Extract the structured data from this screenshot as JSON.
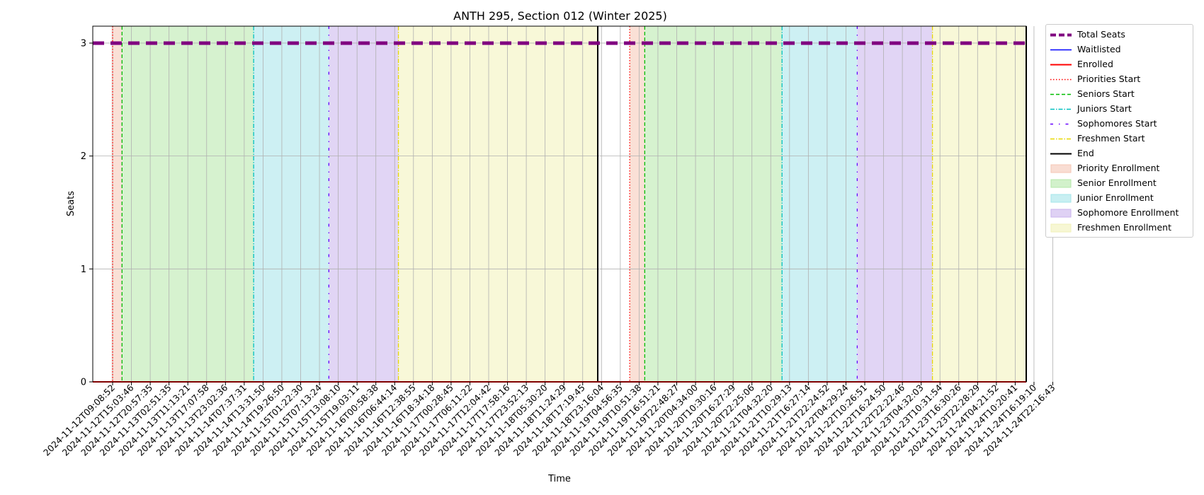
{
  "chart_data": {
    "type": "line",
    "title": "ANTH 295, Section 012 (Winter 2025)",
    "xlabel": "Time",
    "ylabel": "Seats",
    "ylim": [
      0,
      3.15
    ],
    "yticks": [
      0,
      1,
      2,
      3
    ],
    "grid": true,
    "legend_position": "outside-right",
    "x_tick_labels": [
      "2024-11-12T09:08:52",
      "2024-11-12T15:03:46",
      "2024-11-12T20:57:35",
      "2024-11-13T02:51:35",
      "2024-11-13T11:13:21",
      "2024-11-13T17:07:58",
      "2024-11-13T23:02:36",
      "2024-11-14T07:37:31",
      "2024-11-14T13:31:50",
      "2024-11-14T19:26:50",
      "2024-11-15T01:22:30",
      "2024-11-15T07:13:24",
      "2024-11-15T13:08:10",
      "2024-11-15T19:03:11",
      "2024-11-16T00:58:38",
      "2024-11-16T06:44:14",
      "2024-11-16T12:38:55",
      "2024-11-16T18:34:18",
      "2024-11-17T00:28:45",
      "2024-11-17T06:11:22",
      "2024-11-17T12:04:42",
      "2024-11-17T17:58:16",
      "2024-11-17T23:52:13",
      "2024-11-18T05:30:20",
      "2024-11-18T11:24:29",
      "2024-11-18T17:19:45",
      "2024-11-18T23:16:04",
      "2024-11-19T04:56:35",
      "2024-11-19T10:51:38",
      "2024-11-19T16:51:21",
      "2024-11-19T22:48:27",
      "2024-11-20T04:34:00",
      "2024-11-20T10:30:16",
      "2024-11-20T16:27:29",
      "2024-11-20T22:25:06",
      "2024-11-21T04:32:20",
      "2024-11-21T10:29:13",
      "2024-11-21T16:27:14",
      "2024-11-21T22:24:52",
      "2024-11-22T04:29:24",
      "2024-11-22T10:26:51",
      "2024-11-22T16:24:50",
      "2024-11-22T22:22:46",
      "2024-11-23T04:32:03",
      "2024-11-23T10:31:54",
      "2024-11-23T16:30:26",
      "2024-11-23T22:28:29",
      "2024-11-24T04:21:52",
      "2024-11-24T10:20:41",
      "2024-11-24T16:19:10",
      "2024-11-24T22:16:43"
    ],
    "series": [
      {
        "name": "Total Seats",
        "style": "dashed",
        "color": "#800080",
        "values_by_tick": "constant",
        "value": 3
      },
      {
        "name": "Waitlisted",
        "style": "solid",
        "color": "#0000ff",
        "value": 0
      },
      {
        "name": "Enrolled",
        "style": "solid",
        "color": "#ff0000",
        "value": 0
      }
    ],
    "event_lines": [
      {
        "name": "Priorities Start",
        "style": "dotted",
        "color": "#ff0000",
        "at_tick_index": [
          0,
          27.5
        ]
      },
      {
        "name": "Seniors Start",
        "style": "dashed",
        "color": "#00bb00",
        "at_tick_index": [
          0.5,
          28.3
        ]
      },
      {
        "name": "Juniors Start",
        "style": "dashdot",
        "color": "#00c0c0",
        "at_tick_index": [
          7.5,
          35.6
        ]
      },
      {
        "name": "Sophomores Start",
        "style": "loose-dashdot",
        "color": "#6600ff",
        "at_tick_index": [
          11.5,
          39.6
        ]
      },
      {
        "name": "Freshmen Start",
        "style": "dashdot",
        "color": "#e8d800",
        "at_tick_index": [
          15.2,
          43.6
        ]
      },
      {
        "name": "End",
        "style": "solid",
        "color": "#000000",
        "at_tick_index": [
          25.8,
          49.9
        ]
      }
    ],
    "enrollment_periods": [
      {
        "name": "Priority Enrollment",
        "color": "#f5c6b5",
        "ranges_tick_index": [
          [
            -0.05,
            0.5
          ],
          [
            27.5,
            28.3
          ]
        ]
      },
      {
        "name": "Senior Enrollment",
        "color": "#b4e8a8",
        "ranges_tick_index": [
          [
            0.5,
            7.5
          ],
          [
            28.3,
            35.6
          ]
        ]
      },
      {
        "name": "Junior Enrollment",
        "color": "#a4e4ea",
        "ranges_tick_index": [
          [
            7.5,
            11.5
          ],
          [
            35.6,
            39.6
          ]
        ]
      },
      {
        "name": "Sophomore Enrollment",
        "color": "#c9b2ec",
        "ranges_tick_index": [
          [
            11.5,
            15.2
          ],
          [
            39.6,
            43.6
          ]
        ]
      },
      {
        "name": "Freshmen Enrollment",
        "color": "#f2f2b8",
        "ranges_tick_index": [
          [
            15.2,
            25.8
          ],
          [
            43.6,
            49.9
          ]
        ]
      }
    ],
    "legend": [
      {
        "label": "Total Seats",
        "kind": "line",
        "color": "#800080",
        "dash": "8,4",
        "width": 4
      },
      {
        "label": "Waitlisted",
        "kind": "line",
        "color": "#0000ff",
        "dash": "",
        "width": 1.5
      },
      {
        "label": "Enrolled",
        "kind": "line",
        "color": "#ff0000",
        "dash": "",
        "width": 2
      },
      {
        "label": "Priorities Start",
        "kind": "line",
        "color": "#ff0000",
        "dash": "1.5,2.5",
        "width": 1.5
      },
      {
        "label": "Seniors Start",
        "kind": "line",
        "color": "#00bb00",
        "dash": "5,3",
        "width": 1.5
      },
      {
        "label": "Juniors Start",
        "kind": "line",
        "color": "#00c0c0",
        "dash": "6,2,1.5,2",
        "width": 1.5
      },
      {
        "label": "Sophomores Start",
        "kind": "line",
        "color": "#6600ff",
        "dash": "4,8,1.5,8",
        "width": 1.5
      },
      {
        "label": "Freshmen Start",
        "kind": "line",
        "color": "#e8d800",
        "dash": "6,2,1.5,2",
        "width": 1.5
      },
      {
        "label": "End",
        "kind": "line",
        "color": "#000000",
        "dash": "",
        "width": 2
      },
      {
        "label": "Priority Enrollment",
        "kind": "patch",
        "color": "#f5c6b5"
      },
      {
        "label": "Senior Enrollment",
        "kind": "patch",
        "color": "#b4e8a8"
      },
      {
        "label": "Junior Enrollment",
        "kind": "patch",
        "color": "#a4e4ea"
      },
      {
        "label": "Sophomore Enrollment",
        "kind": "patch",
        "color": "#c9b2ec"
      },
      {
        "label": "Freshmen Enrollment",
        "kind": "patch",
        "color": "#f2f2b8"
      }
    ]
  }
}
